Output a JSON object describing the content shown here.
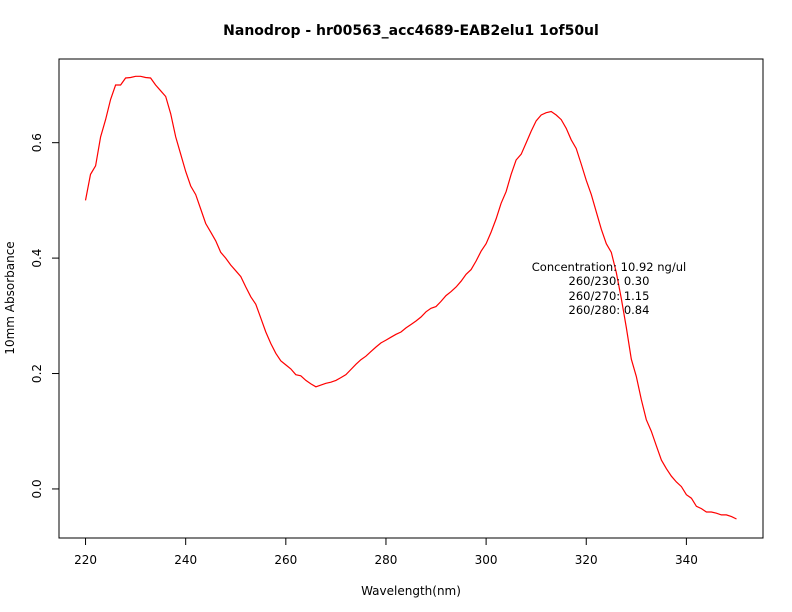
{
  "chart_data": {
    "type": "line",
    "title": "Nanodrop - hr00563_acc4689-EAB2elu1 1of50ul",
    "xlabel": "Wavelength(nm)",
    "ylabel": "10mm Absorbance",
    "xlim": [
      214.7,
      355.3
    ],
    "ylim": [
      -0.085,
      0.745
    ],
    "x_ticks": [
      220,
      240,
      260,
      280,
      300,
      320,
      340
    ],
    "y_ticks": [
      0.0,
      0.2,
      0.4,
      0.6
    ],
    "x_tick_labels": [
      "220",
      "240",
      "260",
      "280",
      "300",
      "320",
      "340"
    ],
    "y_tick_labels": [
      "0.0",
      "0.2",
      "0.4",
      "0.6"
    ],
    "grid": false,
    "series": [
      {
        "color": "#ff0000",
        "x": [
          220,
          221,
          222,
          223,
          224,
          225,
          226,
          227,
          228,
          229,
          230,
          231,
          232,
          233,
          234,
          235,
          236,
          237,
          238,
          239,
          240,
          241,
          242,
          243,
          244,
          245,
          246,
          247,
          248,
          249,
          250,
          251,
          252,
          253,
          254,
          255,
          256,
          257,
          258,
          259,
          260,
          261,
          262,
          263,
          264,
          265,
          266,
          267,
          268,
          269,
          270,
          271,
          272,
          273,
          274,
          275,
          276,
          277,
          278,
          279,
          280,
          281,
          282,
          283,
          284,
          285,
          286,
          287,
          288,
          289,
          290,
          291,
          292,
          293,
          294,
          295,
          296,
          297,
          298,
          299,
          300,
          301,
          302,
          303,
          304,
          305,
          306,
          307,
          308,
          309,
          310,
          311,
          312,
          313,
          314,
          315,
          316,
          317,
          318,
          319,
          320,
          321,
          322,
          323,
          324,
          325,
          326,
          327,
          328,
          329,
          330,
          331,
          332,
          333,
          334,
          335,
          336,
          337,
          338,
          339,
          340,
          341,
          342,
          343,
          344,
          345,
          346,
          347,
          348,
          349,
          350
        ],
        "y": [
          0.5,
          0.545,
          0.56,
          0.61,
          0.64,
          0.675,
          0.7,
          0.7,
          0.712,
          0.713,
          0.715,
          0.715,
          0.713,
          0.712,
          0.7,
          0.69,
          0.68,
          0.65,
          0.61,
          0.58,
          0.55,
          0.525,
          0.51,
          0.485,
          0.46,
          0.445,
          0.43,
          0.41,
          0.4,
          0.388,
          0.378,
          0.368,
          0.35,
          0.333,
          0.32,
          0.296,
          0.272,
          0.252,
          0.235,
          0.222,
          0.215,
          0.208,
          0.198,
          0.196,
          0.188,
          0.182,
          0.177,
          0.18,
          0.183,
          0.185,
          0.188,
          0.193,
          0.198,
          0.207,
          0.216,
          0.224,
          0.23,
          0.238,
          0.246,
          0.253,
          0.258,
          0.263,
          0.268,
          0.272,
          0.279,
          0.285,
          0.291,
          0.298,
          0.307,
          0.313,
          0.316,
          0.325,
          0.335,
          0.342,
          0.35,
          0.36,
          0.372,
          0.38,
          0.395,
          0.412,
          0.425,
          0.445,
          0.468,
          0.495,
          0.515,
          0.545,
          0.57,
          0.58,
          0.6,
          0.62,
          0.638,
          0.648,
          0.652,
          0.654,
          0.648,
          0.64,
          0.625,
          0.605,
          0.59,
          0.563,
          0.535,
          0.51,
          0.48,
          0.45,
          0.425,
          0.41,
          0.375,
          0.33,
          0.28,
          0.225,
          0.195,
          0.155,
          0.12,
          0.1,
          0.075,
          0.05,
          0.035,
          0.022,
          0.012,
          0.004,
          -0.01,
          -0.016,
          -0.03,
          -0.034,
          -0.04,
          -0.04,
          -0.042,
          -0.045,
          -0.045,
          -0.048,
          -0.052
        ]
      }
    ],
    "annotations": [
      "Concentration: 10.92 ng/ul",
      "260/230: 0.30",
      "260/270: 1.15",
      "260/280: 0.84"
    ]
  }
}
